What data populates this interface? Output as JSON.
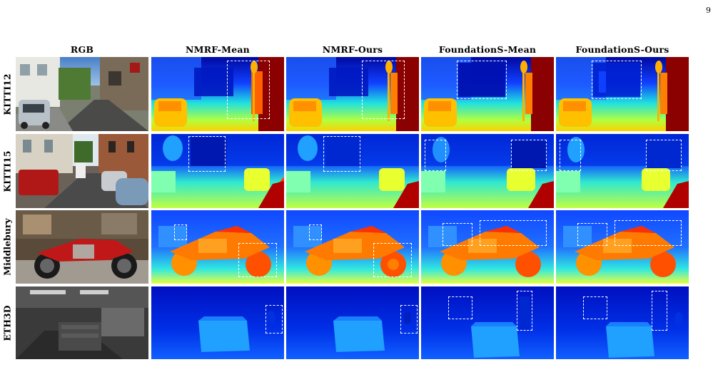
{
  "page_number": "9",
  "columns": [
    "RGB",
    "NMRF-Mean",
    "NMRF-Ours",
    "FoundationS-Mean",
    "FoundationS-Ours"
  ],
  "rows": [
    "KITTI12",
    "KITTI15",
    "Middlebury",
    "ETH3D"
  ],
  "colormap": {
    "near": "#8b0000",
    "mid_hot": "#ff3a00",
    "mid": "#ffe000",
    "mid_cool": "#20e0e0",
    "far": "#1040ff",
    "deep": "#0008a0"
  },
  "roi_style": "white-dashed-box"
}
